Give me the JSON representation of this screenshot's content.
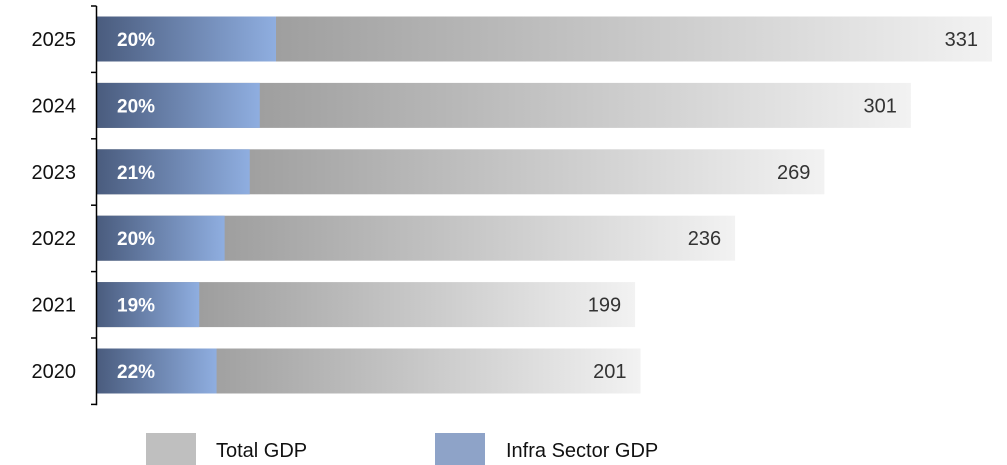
{
  "chart_data": {
    "type": "bar",
    "orientation": "horizontal",
    "stacked": true,
    "categories": [
      "2025",
      "2024",
      "2023",
      "2022",
      "2021",
      "2020"
    ],
    "total_gdp": [
      331,
      301,
      269,
      236,
      199,
      201
    ],
    "infra_share_percent": [
      20,
      20,
      21,
      20,
      19,
      22
    ],
    "share_labels": [
      "20%",
      "20%",
      "21%",
      "20%",
      "19%",
      "22%"
    ],
    "total_labels": [
      "331",
      "301",
      "269",
      "236",
      "199",
      "201"
    ],
    "series": [
      {
        "name": "Total GDP",
        "color": "#bfbfbf"
      },
      {
        "name": "Infra Sector GDP",
        "color": "#8ea3c8"
      }
    ],
    "xlim": [
      0,
      331
    ],
    "legend_position": "bottom",
    "grid": false,
    "colors": {
      "total_dark": "#8a8a8a",
      "total_light": "#f2f2f2",
      "infra_dark": "#4a5c7e",
      "infra_light": "#8faee0",
      "axis": "#000000"
    }
  }
}
